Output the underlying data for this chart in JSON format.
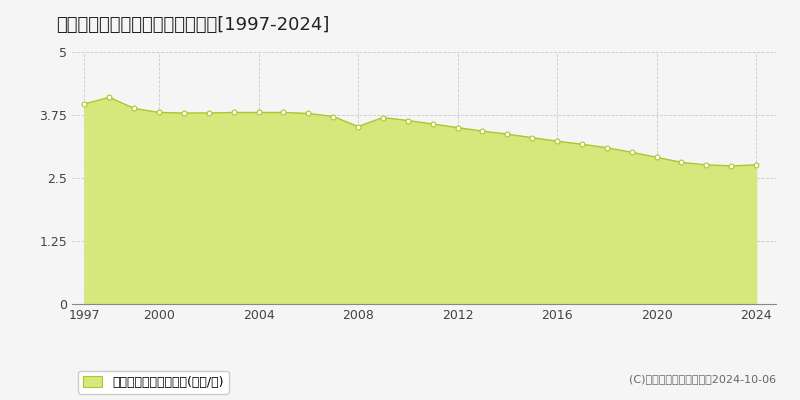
{
  "title": "夕張郡栗山町朝日　基準地価推移[1997-2024]",
  "years": [
    1997,
    1998,
    1999,
    2000,
    2001,
    2002,
    2003,
    2004,
    2005,
    2006,
    2007,
    2008,
    2009,
    2010,
    2011,
    2012,
    2013,
    2014,
    2015,
    2016,
    2017,
    2018,
    2019,
    2020,
    2021,
    2022,
    2023,
    2024
  ],
  "values": [
    3.97,
    4.1,
    3.88,
    3.8,
    3.79,
    3.79,
    3.8,
    3.8,
    3.8,
    3.78,
    3.72,
    3.52,
    3.7,
    3.64,
    3.57,
    3.5,
    3.43,
    3.37,
    3.3,
    3.23,
    3.17,
    3.1,
    3.01,
    2.91,
    2.81,
    2.76,
    2.74,
    2.76
  ],
  "line_color": "#a8c830",
  "fill_color": "#d6e87c",
  "marker_facecolor": "#ffffff",
  "marker_edgecolor": "#a8c830",
  "bg_color": "#f5f5f5",
  "plot_bg_color": "#f5f5f5",
  "grid_color": "#cccccc",
  "ylim": [
    0,
    5
  ],
  "yticks": [
    0,
    1.25,
    2.5,
    3.75,
    5
  ],
  "ytick_labels": [
    "0",
    "1.25",
    "2.5",
    "3.75",
    "5"
  ],
  "xtick_labels": [
    "1997",
    "2000",
    "2004",
    "2008",
    "2012",
    "2016",
    "2020",
    "2024"
  ],
  "xtick_positions": [
    1997,
    2000,
    2004,
    2008,
    2012,
    2016,
    2020,
    2024
  ],
  "legend_label": "基準地価　平均坪単価(万円/坪)",
  "copyright": "(C)土地価格ドットコム　2024-10-06",
  "title_fontsize": 13,
  "axis_fontsize": 9,
  "legend_fontsize": 9,
  "copyright_fontsize": 8
}
